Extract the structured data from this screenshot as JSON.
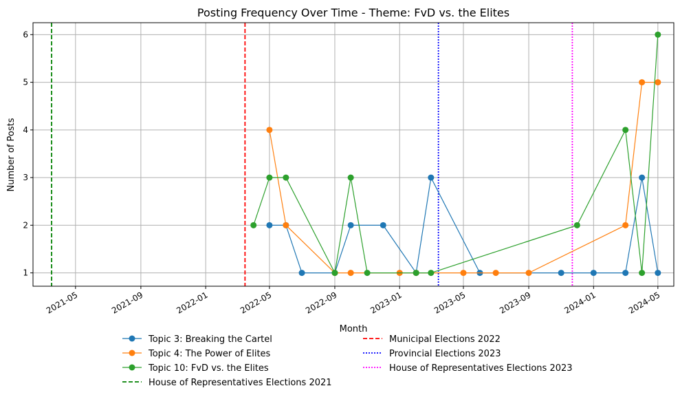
{
  "chart_data": {
    "type": "line",
    "title": "Posting Frequency Over Time - Theme: FvD vs. the Elites",
    "xlabel": "Month",
    "ylabel": "Number of Posts",
    "grid": true,
    "legend_placement": "bottom-center",
    "xlim": [
      "2021-02-10",
      "2024-05-31"
    ],
    "ylim": [
      0.72,
      6.25
    ],
    "x_ticks": [
      "2021-05",
      "2021-09",
      "2022-01",
      "2022-05",
      "2022-09",
      "2023-01",
      "2023-05",
      "2023-09",
      "2024-01",
      "2024-05"
    ],
    "y_ticks": [
      1,
      2,
      3,
      4,
      5,
      6
    ],
    "series": [
      {
        "name": "Topic 3: Breaking the Cartel",
        "color": "#1f77b4",
        "marker": "circle",
        "points": [
          {
            "x": "2022-05-01",
            "y": 2
          },
          {
            "x": "2022-06-01",
            "y": 2
          },
          {
            "x": "2022-07-01",
            "y": 1
          },
          {
            "x": "2022-09-01",
            "y": 1
          },
          {
            "x": "2022-10-01",
            "y": 2
          },
          {
            "x": "2022-12-01",
            "y": 2
          },
          {
            "x": "2023-02-01",
            "y": 1
          },
          {
            "x": "2023-03-01",
            "y": 3
          },
          {
            "x": "2023-06-01",
            "y": 1
          },
          {
            "x": "2023-11-01",
            "y": 1
          },
          {
            "x": "2024-01-01",
            "y": 1
          },
          {
            "x": "2024-03-01",
            "y": 1
          },
          {
            "x": "2024-04-01",
            "y": 3
          },
          {
            "x": "2024-05-01",
            "y": 1
          }
        ]
      },
      {
        "name": "Topic 4: The Power of Elites",
        "color": "#ff7f0e",
        "marker": "circle",
        "points": [
          {
            "x": "2022-05-01",
            "y": 4
          },
          {
            "x": "2022-06-01",
            "y": 2
          },
          {
            "x": "2022-09-01",
            "y": 1
          },
          {
            "x": "2022-10-01",
            "y": 1
          },
          {
            "x": "2023-01-01",
            "y": 1
          },
          {
            "x": "2023-02-01",
            "y": 1
          },
          {
            "x": "2023-05-01",
            "y": 1
          },
          {
            "x": "2023-07-01",
            "y": 1
          },
          {
            "x": "2023-09-01",
            "y": 1
          },
          {
            "x": "2024-03-01",
            "y": 2
          },
          {
            "x": "2024-04-01",
            "y": 5
          },
          {
            "x": "2024-05-01",
            "y": 5
          }
        ]
      },
      {
        "name": "Topic 10: FvD vs. the Elites",
        "color": "#2ca02c",
        "marker": "circle",
        "points": [
          {
            "x": "2022-04-01",
            "y": 2
          },
          {
            "x": "2022-05-01",
            "y": 3
          },
          {
            "x": "2022-06-01",
            "y": 3
          },
          {
            "x": "2022-09-01",
            "y": 1
          },
          {
            "x": "2022-10-01",
            "y": 3
          },
          {
            "x": "2022-11-01",
            "y": 1
          },
          {
            "x": "2023-02-01",
            "y": 1
          },
          {
            "x": "2023-03-01",
            "y": 1
          },
          {
            "x": "2023-12-01",
            "y": 2
          },
          {
            "x": "2024-03-01",
            "y": 4
          },
          {
            "x": "2024-04-01",
            "y": 1
          },
          {
            "x": "2024-05-01",
            "y": 6
          }
        ]
      }
    ],
    "reference_lines": [
      {
        "name": "House of Representatives Elections 2021",
        "x": "2021-03-17",
        "color": "#008000",
        "style": "dashed"
      },
      {
        "name": "Municipal Elections 2022",
        "x": "2022-03-16",
        "color": "#ff0000",
        "style": "dashed"
      },
      {
        "name": "Provincial Elections 2023",
        "x": "2023-03-15",
        "color": "#0000ff",
        "style": "dotted"
      },
      {
        "name": "House of Representatives Elections 2023",
        "x": "2023-11-22",
        "color": "#ff00ff",
        "style": "dotted"
      }
    ]
  }
}
